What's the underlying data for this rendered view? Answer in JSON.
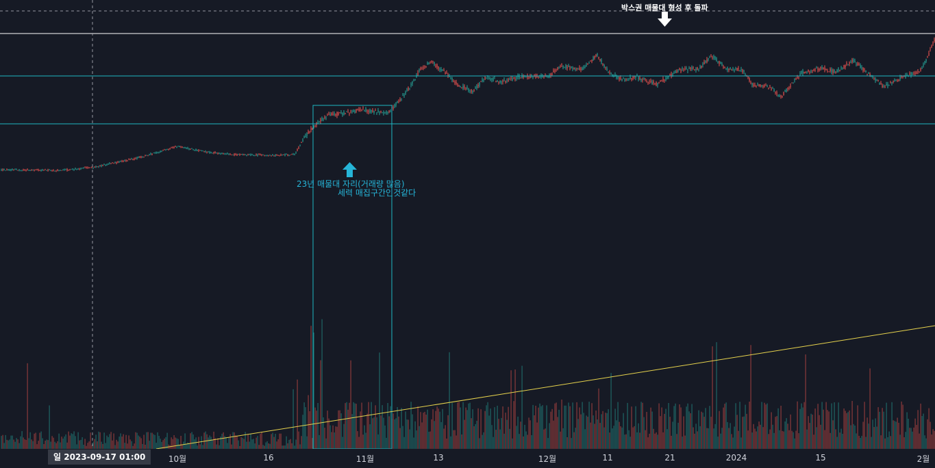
{
  "chart_data": {
    "type": "candlestick",
    "time_axis": {
      "ticks": [
        "10월",
        "16",
        "11월",
        "13",
        "12월",
        "11",
        "21",
        "2024",
        "15",
        "2월"
      ],
      "crosshair_label": "일 2023-09-17   01:00"
    },
    "annotations": {
      "top_text": "박스권 매물대 형성 후 돌파",
      "box_note_line1": "23년 매물대 자리(거래량 많음)",
      "box_note_line2": "세력 매집구간인것같다"
    },
    "colors": {
      "background": "#161a25",
      "up_candle": "#26a69a",
      "down_candle": "#ef5350",
      "horizontal_lines": "#1fb8c4",
      "box": "#1fb8c4",
      "trendline": "#e8d44d",
      "resistance_line": "#ffffff",
      "crosshair": "#9598a1"
    },
    "icons": {
      "up_arrow": "up-arrow-icon",
      "down_arrow": "down-arrow-icon"
    },
    "grid": false
  }
}
